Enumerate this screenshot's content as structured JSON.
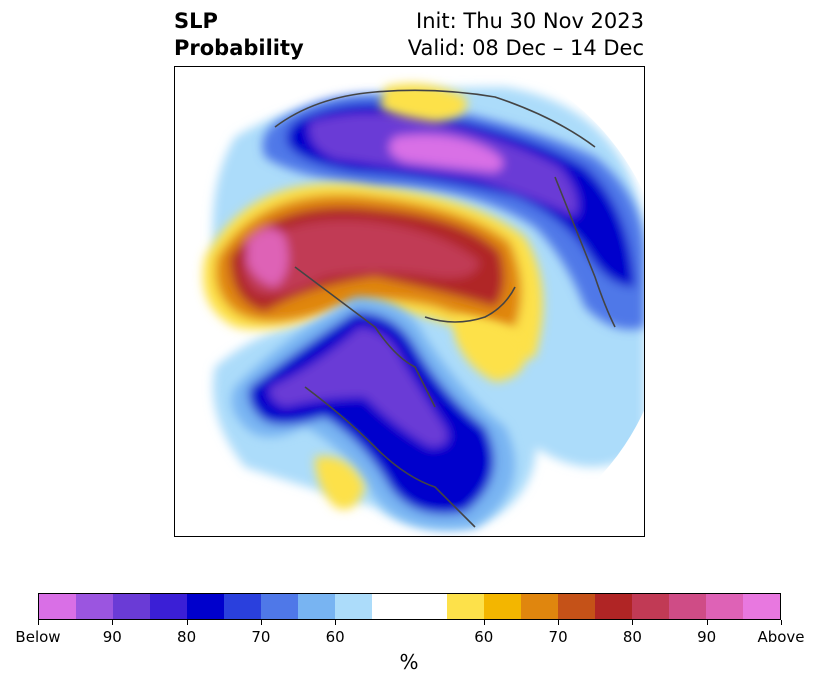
{
  "title": {
    "left_line1": "SLP",
    "left_line2": "Probability",
    "right_line1": "Init: Thu 30 Nov 2023",
    "right_line2": "Valid: 08 Dec – 14 Dec"
  },
  "colorbar": {
    "unit": "%",
    "colors": [
      "#d96fe6",
      "#9b55e0",
      "#6a3bd6",
      "#3b1fd6",
      "#0000cc",
      "#2a40dd",
      "#4f78e8",
      "#78b4f2",
      "#acdcfa",
      "#ffffff",
      "#fde14a",
      "#f3b600",
      "#e0860e",
      "#c55218",
      "#b02525",
      "#c13a55",
      "#cf4c86",
      "#de62b6",
      "#e878e0"
    ],
    "ticks": [
      "Below",
      "90",
      "80",
      "70",
      "60",
      "60",
      "70",
      "80",
      "90",
      "Above"
    ]
  },
  "colors": {
    "low": "#0000cc",
    "high": "#b02525",
    "coast": "#444444"
  }
}
